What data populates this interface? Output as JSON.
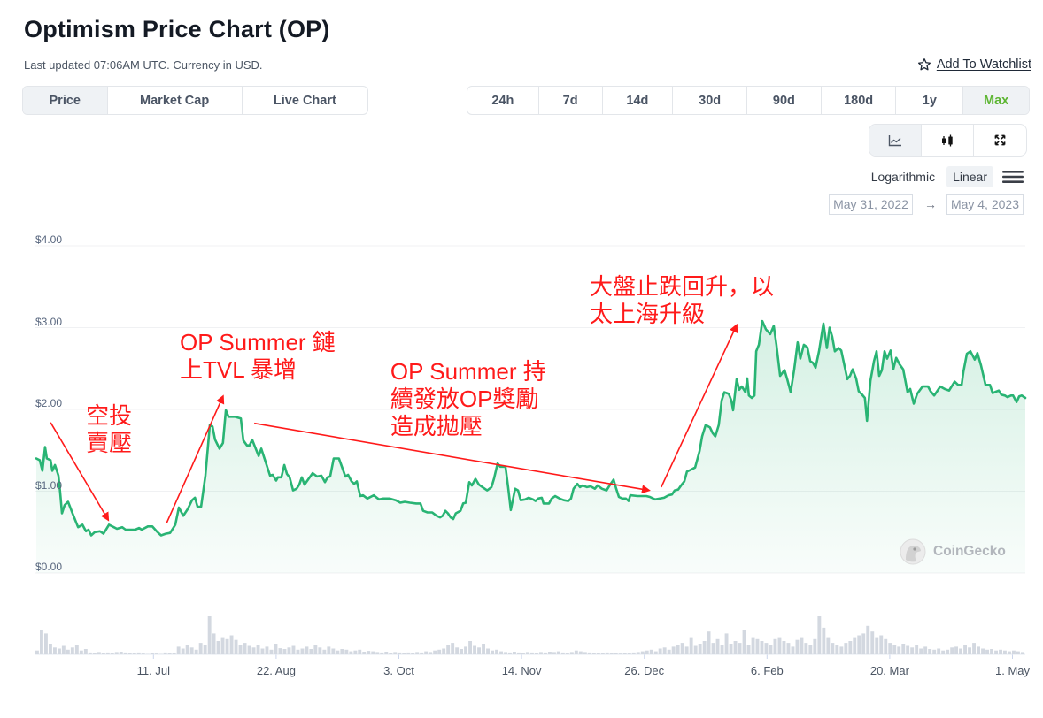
{
  "header": {
    "title": "Optimism Price Chart (OP)",
    "subtitle": "Last updated 07:06AM UTC. Currency in USD.",
    "watchlist": {
      "icon": "star-outline-icon",
      "label": "Add To Watchlist"
    }
  },
  "view_tabs": [
    {
      "label": "Price",
      "active": true
    },
    {
      "label": "Market Cap",
      "active": false
    },
    {
      "label": "Live Chart",
      "active": false
    }
  ],
  "ranges": [
    {
      "label": "24h",
      "active": false
    },
    {
      "label": "7d",
      "active": false
    },
    {
      "label": "14d",
      "active": false
    },
    {
      "label": "30d",
      "active": false
    },
    {
      "label": "90d",
      "active": false
    },
    {
      "label": "180d",
      "active": false
    },
    {
      "label": "1y",
      "active": false
    },
    {
      "label": "Max",
      "active": true
    }
  ],
  "chart_types": [
    {
      "icon": "line-chart-icon",
      "active": true
    },
    {
      "icon": "candlestick-icon",
      "active": false
    },
    {
      "icon": "fullscreen-icon",
      "active": false
    }
  ],
  "scale": {
    "options": [
      "Logarithmic",
      "Linear"
    ],
    "active": "Linear",
    "menu_icon": "hamburger-menu-icon"
  },
  "date_range": {
    "from": "May 31, 2022",
    "arrow": "→",
    "to": "May 4, 2023"
  },
  "watermark": {
    "label": "CoinGecko"
  },
  "colors": {
    "line": "#29b474",
    "max_active": "#5cb531",
    "annotation": "#ff1a1a",
    "volume": "#d3d8e0",
    "grid": "#f0f1f3"
  },
  "chart_data": {
    "type": "area",
    "title": "Optimism Price Chart (OP)",
    "xlabel": "",
    "ylabel": "Price (USD)",
    "ylim": [
      0,
      4
    ],
    "grid": true,
    "x_start": "May 31, 2022",
    "x_end": "May 4, 2023",
    "x_unit": "days since May 31, 2022",
    "y_ticks": [
      {
        "label": "$4.00",
        "value": 4
      },
      {
        "label": "$3.00",
        "value": 3
      },
      {
        "label": "$2.00",
        "value": 2
      },
      {
        "label": "$1.00",
        "value": 1
      },
      {
        "label": "$0.00",
        "value": 0
      }
    ],
    "x_ticks": [
      {
        "label": "11. Jul",
        "day": 41
      },
      {
        "label": "22. Aug",
        "day": 83
      },
      {
        "label": "3. Oct",
        "day": 125
      },
      {
        "label": "14. Nov",
        "day": 167
      },
      {
        "label": "26. Dec",
        "day": 209
      },
      {
        "label": "6. Feb",
        "day": 251
      },
      {
        "label": "20. Mar",
        "day": 293
      },
      {
        "label": "1. May",
        "day": 335
      }
    ],
    "series": [
      {
        "name": "Price",
        "days": [
          0.9,
          2.1,
          3.0,
          3.9,
          4.5,
          5.8,
          6.4,
          7.3,
          8.5,
          9.1,
          9.7,
          10.6,
          11.8,
          13.3,
          15.2,
          16.7,
          17.9,
          18.8,
          19.7,
          20.9,
          22.7,
          23.9,
          25.8,
          28.5,
          30.3,
          31.5,
          34.8,
          36.1,
          37.0,
          39.1,
          40.6,
          42.1,
          43.6,
          45.2,
          46.7,
          48.5,
          49.7,
          51.2,
          52.7,
          54.2,
          55.2,
          56.1,
          57.3,
          58.8,
          60.3,
          61.2,
          62.1,
          63.6,
          64.8,
          65.8,
          66.7,
          68.8,
          70.9,
          71.8,
          73.0,
          73.9,
          74.8,
          77.0,
          77.9,
          80.9,
          81.8,
          83.0,
          83.6,
          84.8,
          85.8,
          86.7,
          87.6,
          88.8,
          90.0,
          90.9,
          91.8,
          92.7,
          93.9,
          95.5,
          97.0,
          98.5,
          99.7,
          100.6,
          101.5,
          102.7,
          104.5,
          105.8,
          106.7,
          107.6,
          108.8,
          109.7,
          110.6,
          111.8,
          112.7,
          114.2,
          116.4,
          118.2,
          119.7,
          121.8,
          123.9,
          125.5,
          127.0,
          128.8,
          130.9,
          132.4,
          133.3,
          134.8,
          136.4,
          137.9,
          139.1,
          140.0,
          140.9,
          141.8,
          142.7,
          143.6,
          144.5,
          146.1,
          147.0,
          147.9,
          149.1,
          150.0,
          151.2,
          152.4,
          153.6,
          155.2,
          156.7,
          157.6,
          158.8,
          159.7,
          161.5,
          162.4,
          163.3,
          164.8,
          165.8,
          166.7,
          168.2,
          169.4,
          170.9,
          171.8,
          172.7,
          173.9,
          174.5,
          176.4,
          177.3,
          178.5,
          180.0,
          181.5,
          183.0,
          183.9,
          184.8,
          186.1,
          187.0,
          187.9,
          189.4,
          190.6,
          192.1,
          193.0,
          194.5,
          196.1,
          197.3,
          198.5,
          199.4,
          200.3,
          201.5,
          202.7,
          203.6,
          204.2,
          206.7,
          209.7,
          210.9,
          212.7,
          215.8,
          217.3,
          218.5,
          219.4,
          220.6,
          221.8,
          222.7,
          223.6,
          224.8,
          226.4,
          227.9,
          228.8,
          230.0,
          231.5,
          232.4,
          233.3,
          234.5,
          235.5,
          236.4,
          237.9,
          238.8,
          239.4,
          240.6,
          241.5,
          242.4,
          243.6,
          244.2,
          244.8,
          245.8,
          246.7,
          247.3,
          248.2,
          249.4,
          250.6,
          252.1,
          253.3,
          254.2,
          255.5,
          257.0,
          257.9,
          259.1,
          260.3,
          261.5,
          262.4,
          263.6,
          264.8,
          265.8,
          266.7,
          267.6,
          268.8,
          270.3,
          271.5,
          272.4,
          273.3,
          274.2,
          275.5,
          276.4,
          278.5,
          279.4,
          280.3,
          281.5,
          282.4,
          283.3,
          284.5,
          285.2,
          286.4,
          287.6,
          288.5,
          289.4,
          290.3,
          291.2,
          292.1,
          293.3,
          294.2,
          295.2,
          296.4,
          297.6,
          299.1,
          300.0,
          301.2,
          302.4,
          304.2,
          306.1,
          307.0,
          308.2,
          310.3,
          311.8,
          313.3,
          315.2,
          316.4,
          317.6,
          318.2,
          319.4,
          320.6,
          322.1,
          323.0,
          324.2,
          325.8,
          327.3,
          328.2,
          330.3,
          331.2,
          332.4,
          333.3,
          334.5,
          335.2,
          336.4,
          337.3,
          338.2,
          339.4
        ],
        "values": [
          1.4,
          1.38,
          1.25,
          1.54,
          1.4,
          1.38,
          1.25,
          1.32,
          1.19,
          0.98,
          0.73,
          0.83,
          0.87,
          0.73,
          0.56,
          0.59,
          0.51,
          0.53,
          0.46,
          0.5,
          0.51,
          0.48,
          0.59,
          0.54,
          0.56,
          0.53,
          0.53,
          0.55,
          0.53,
          0.57,
          0.57,
          0.51,
          0.46,
          0.48,
          0.49,
          0.59,
          0.8,
          0.7,
          0.78,
          0.89,
          0.92,
          0.81,
          0.81,
          1.19,
          1.81,
          1.79,
          1.63,
          1.52,
          1.59,
          1.99,
          1.91,
          1.91,
          1.89,
          1.62,
          1.56,
          1.56,
          1.63,
          1.43,
          1.52,
          1.19,
          1.2,
          1.13,
          1.17,
          1.17,
          1.32,
          1.21,
          1.17,
          1.01,
          1.03,
          1.08,
          1.17,
          1.08,
          1.14,
          1.22,
          1.18,
          1.19,
          1.11,
          1.17,
          1.18,
          1.4,
          1.4,
          1.27,
          1.18,
          1.2,
          1.12,
          1.09,
          1.12,
          0.94,
          0.95,
          0.91,
          0.95,
          0.9,
          0.91,
          0.91,
          0.89,
          0.86,
          0.87,
          0.86,
          0.85,
          0.85,
          0.76,
          0.74,
          0.74,
          0.7,
          0.68,
          0.7,
          0.76,
          0.73,
          0.68,
          0.66,
          0.73,
          0.76,
          0.85,
          0.86,
          1.11,
          1.07,
          1.15,
          1.08,
          1.05,
          1.01,
          1.05,
          1.16,
          1.34,
          1.3,
          1.3,
          1.05,
          0.77,
          1.03,
          1.01,
          0.89,
          0.9,
          0.92,
          0.9,
          0.88,
          0.91,
          0.92,
          0.85,
          0.85,
          0.91,
          0.94,
          0.91,
          0.89,
          0.88,
          0.91,
          1.03,
          1.09,
          1.05,
          1.07,
          1.05,
          1.06,
          1.03,
          1.07,
          1.03,
          1.01,
          1.08,
          1.14,
          1.03,
          0.93,
          0.91,
          0.91,
          0.88,
          0.95,
          0.94,
          0.94,
          0.93,
          0.9,
          0.92,
          0.95,
          0.96,
          1.01,
          1.02,
          1.08,
          1.12,
          1.24,
          1.26,
          1.29,
          1.49,
          1.67,
          1.81,
          1.78,
          1.71,
          1.67,
          1.81,
          2.11,
          2.21,
          2.19,
          2.11,
          1.99,
          2.37,
          2.24,
          2.28,
          2.21,
          2.38,
          2.17,
          2.14,
          2.17,
          2.71,
          2.79,
          3.08,
          2.98,
          2.92,
          3.02,
          2.79,
          2.41,
          2.48,
          2.37,
          2.21,
          2.49,
          2.82,
          2.62,
          2.79,
          2.76,
          2.59,
          2.57,
          2.51,
          2.71,
          3.05,
          2.75,
          3.0,
          2.89,
          2.71,
          2.75,
          2.72,
          2.37,
          2.41,
          2.49,
          2.38,
          2.22,
          2.19,
          2.14,
          1.86,
          2.35,
          2.59,
          2.71,
          2.41,
          2.48,
          2.71,
          2.62,
          2.72,
          2.49,
          2.63,
          2.55,
          2.49,
          2.21,
          2.25,
          2.07,
          2.19,
          2.28,
          2.28,
          2.22,
          2.17,
          2.28,
          2.25,
          2.23,
          2.34,
          2.3,
          2.3,
          2.46,
          2.68,
          2.71,
          2.61,
          2.69,
          2.54,
          2.3,
          2.3,
          2.2,
          2.23,
          2.18,
          2.17,
          2.15,
          2.17,
          2.17,
          2.09,
          2.16,
          2.17,
          2.14
        ]
      },
      {
        "name": "Volume (relative)",
        "values": [
          10,
          65,
          55,
          28,
          18,
          15,
          22,
          12,
          18,
          25,
          10,
          14,
          5,
          4,
          6,
          3,
          5,
          4,
          6,
          7,
          5,
          4,
          3,
          5,
          2,
          1,
          4,
          2,
          1,
          5,
          3,
          4,
          20,
          15,
          25,
          18,
          12,
          30,
          25,
          100,
          55,
          35,
          45,
          40,
          50,
          38,
          25,
          30,
          22,
          18,
          25,
          15,
          20,
          12,
          28,
          16,
          14,
          18,
          22,
          12,
          15,
          20,
          14,
          25,
          18,
          12,
          20,
          15,
          10,
          14,
          12,
          8,
          10,
          12,
          7,
          9,
          8,
          6,
          5,
          7,
          4,
          6,
          5,
          3,
          5,
          4,
          6,
          5,
          8,
          6,
          10,
          12,
          15,
          25,
          30,
          18,
          14,
          20,
          35,
          22,
          18,
          28,
          15,
          10,
          12,
          8,
          6,
          5,
          7,
          5,
          4,
          6,
          5,
          4,
          6,
          5,
          7,
          6,
          8,
          5,
          4,
          6,
          10,
          8,
          6,
          5,
          4,
          3,
          4,
          5,
          3,
          4,
          2,
          3,
          4,
          5,
          6,
          8,
          10,
          12,
          8,
          15,
          18,
          12,
          20,
          25,
          30,
          20,
          45,
          22,
          28,
          35,
          60,
          30,
          40,
          25,
          55,
          28,
          35,
          30,
          65,
          25,
          45,
          40,
          35,
          30,
          25,
          40,
          45,
          35,
          30,
          20,
          38,
          45,
          30,
          25,
          40,
          100,
          70,
          45,
          30,
          25,
          20,
          30,
          35,
          45,
          50,
          55,
          75,
          60,
          45,
          50,
          40,
          30,
          25,
          20,
          28,
          22,
          18,
          25,
          15,
          20,
          14,
          12,
          15,
          10,
          12,
          18,
          20,
          15,
          25,
          18,
          30,
          20,
          15,
          12,
          14,
          10,
          12,
          10,
          8,
          10,
          8,
          6
        ]
      }
    ],
    "annotations": [
      {
        "lines": [
          "空投",
          "賣壓"
        ],
        "text_at": {
          "day": 17.9,
          "price": 2.09
        },
        "arrow": {
          "from": {
            "day": 5.8,
            "price": 1.84
          },
          "to": {
            "day": 25.5,
            "price": 0.65
          }
        }
      },
      {
        "lines": [
          "OP Summer 鏈",
          "上TVL 暴增"
        ],
        "text_at": {
          "day": 50.0,
          "price": 2.98
        },
        "arrow": {
          "from": {
            "day": 45.5,
            "price": 0.61
          },
          "to": {
            "day": 64.8,
            "price": 2.16
          }
        }
      },
      {
        "lines": [
          "OP Summer 持",
          "續發放OP獎勵",
          "造成拋壓"
        ],
        "text_at": {
          "day": 122.1,
          "price": 2.63
        },
        "arrow": {
          "from": {
            "day": 75.5,
            "price": 1.83
          },
          "to": {
            "day": 210.6,
            "price": 1.01
          }
        }
      },
      {
        "lines": [
          "大盤止跌回升，以",
          "太上海升級"
        ],
        "text_at": {
          "day": 190.3,
          "price": 3.66
        },
        "arrow": {
          "from": {
            "day": 214.8,
            "price": 1.05
          },
          "to": {
            "day": 240.6,
            "price": 3.03
          }
        }
      }
    ]
  }
}
